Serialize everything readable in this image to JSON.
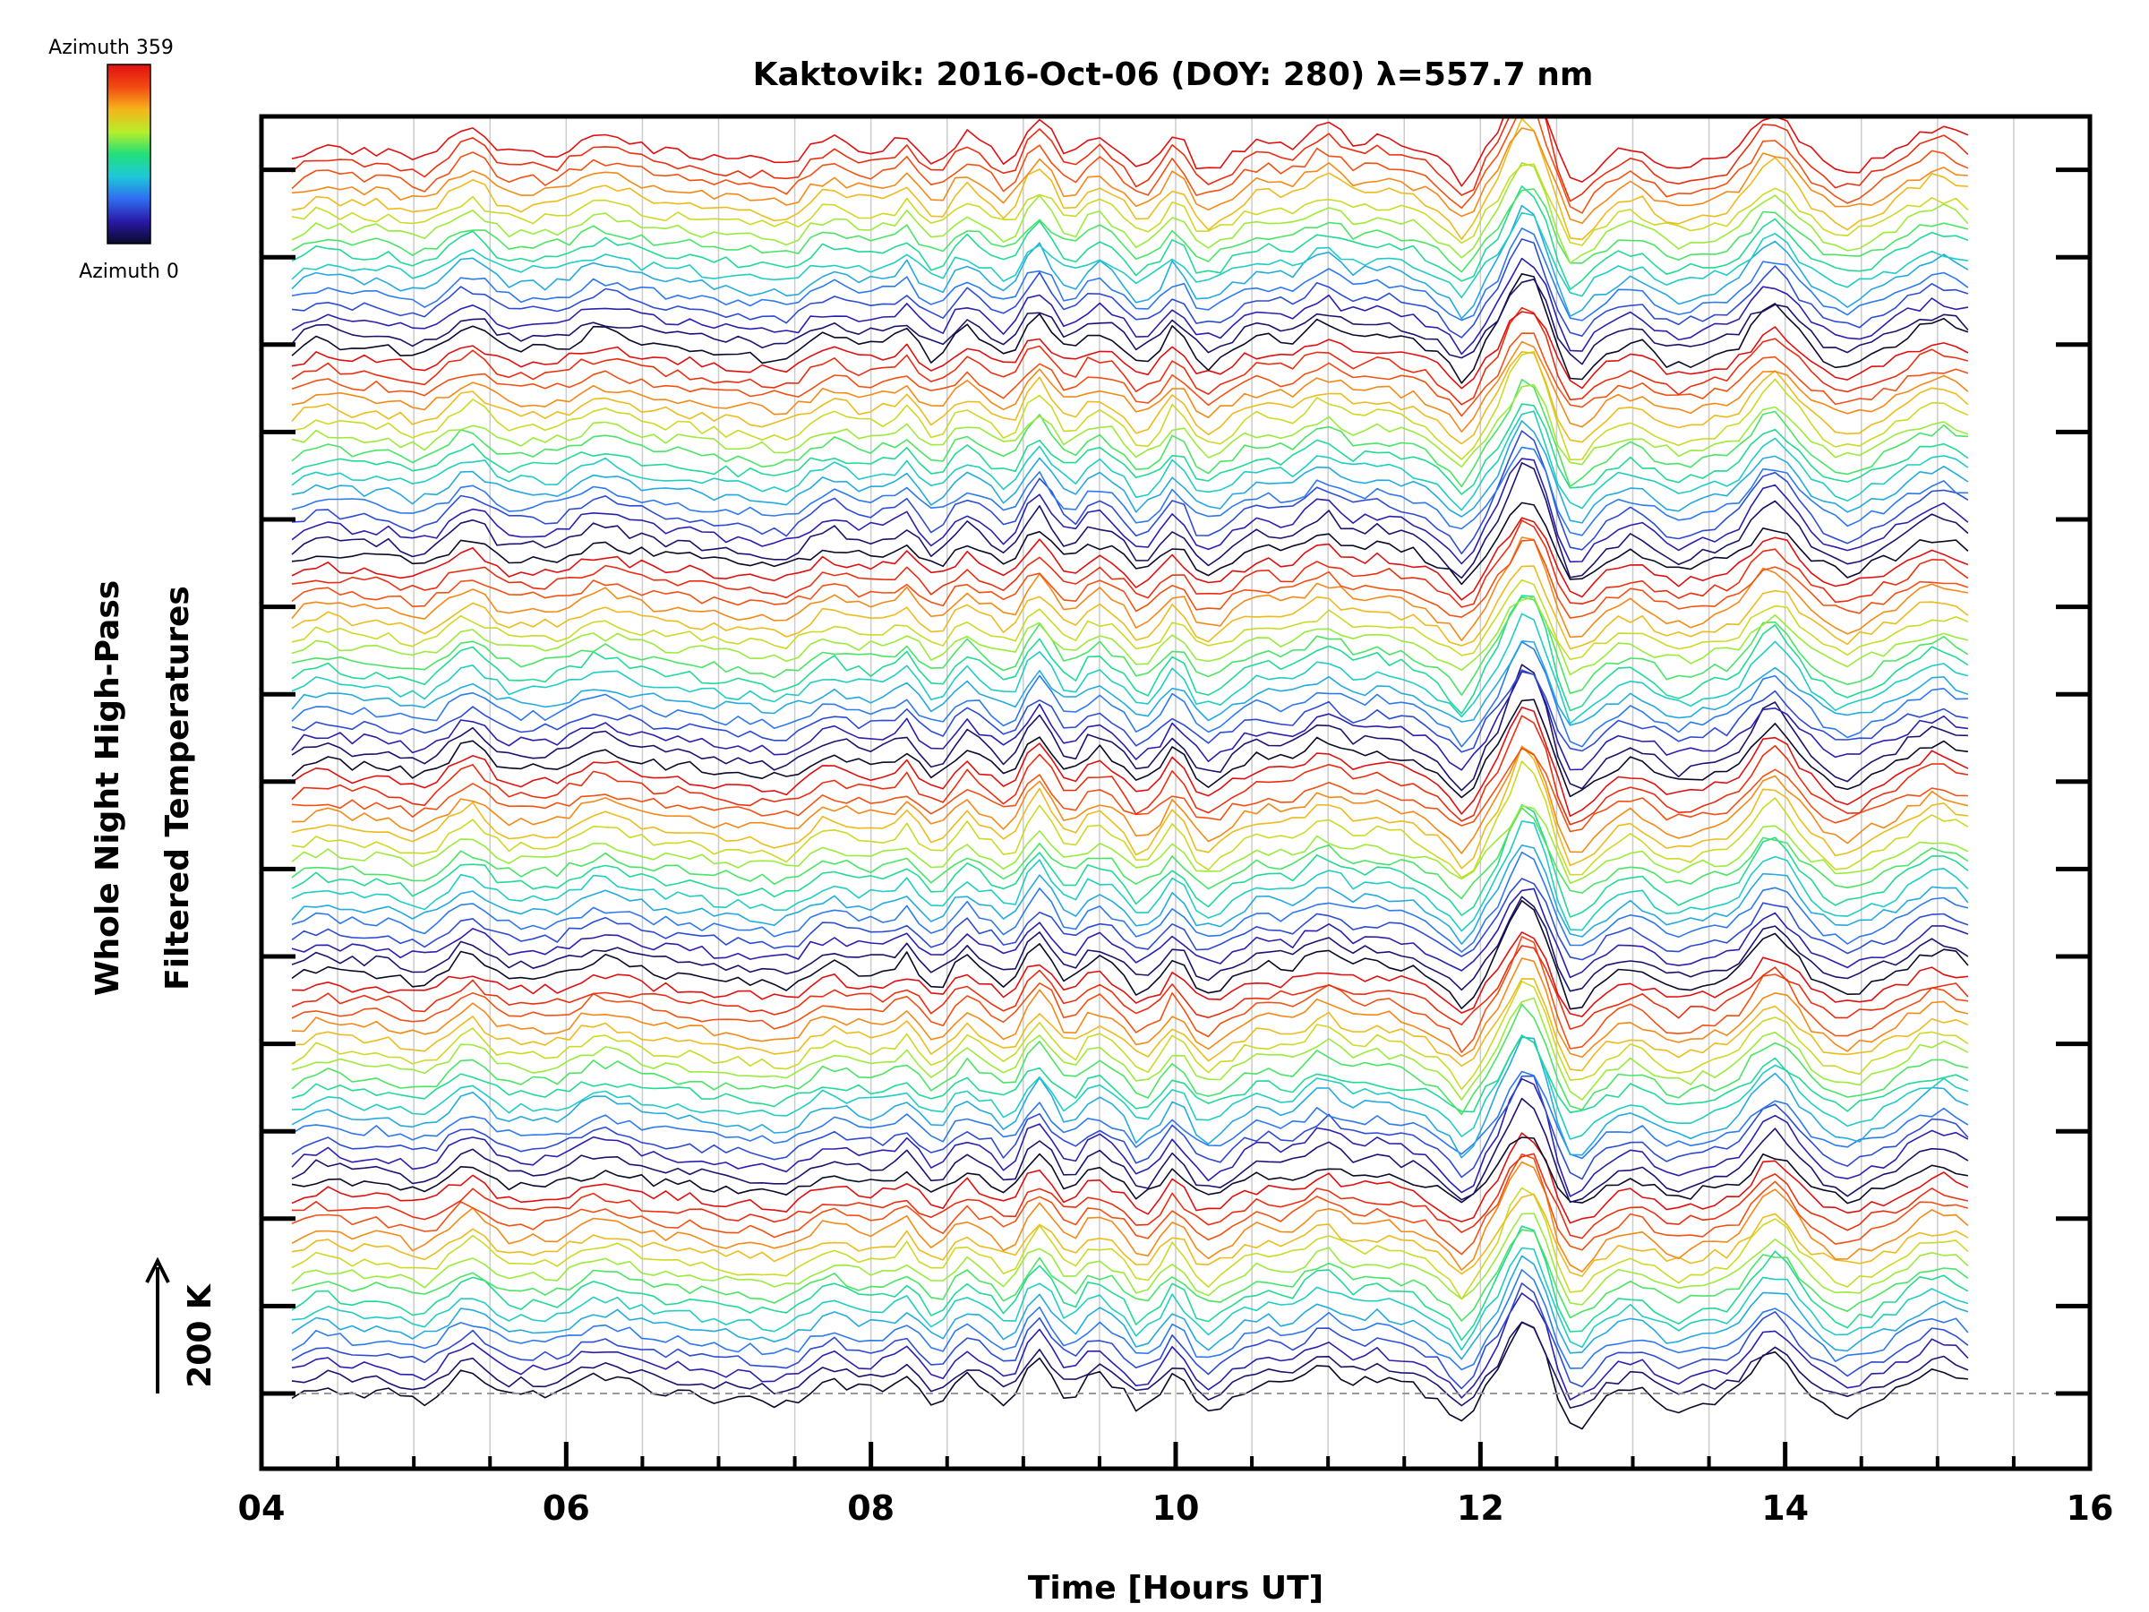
{
  "chart_data": {
    "type": "line",
    "title": "Kaktovik: 2016-Oct-06 (DOY: 280) λ=557.7 nm",
    "xlabel": "Time [Hours UT]",
    "ylabel_lines": [
      "Whole Night High-Pass",
      "Filtered Temperatures"
    ],
    "xlim": [
      4,
      16
    ],
    "x_ticks": [
      "04",
      "06",
      "08",
      "10",
      "12",
      "14",
      "16"
    ],
    "x_time_range": [
      4.2,
      15.2
    ],
    "grid": "vertical",
    "series_count": 96,
    "colormap": "rainbow",
    "scale_bar_label": "200 K",
    "colorbar": {
      "top_label": "Azimuth 359",
      "bottom_label": "Azimuth 0",
      "stops": [
        "#0a0a2a",
        "#2a1aa8",
        "#2f6df0",
        "#1ec8d8",
        "#22e07a",
        "#b8ee2a",
        "#f5b31a",
        "#f24a12",
        "#e01010"
      ]
    },
    "colors": {
      "axis": "#000000",
      "grid": "#cccccc",
      "baseline": "#999999"
    }
  }
}
